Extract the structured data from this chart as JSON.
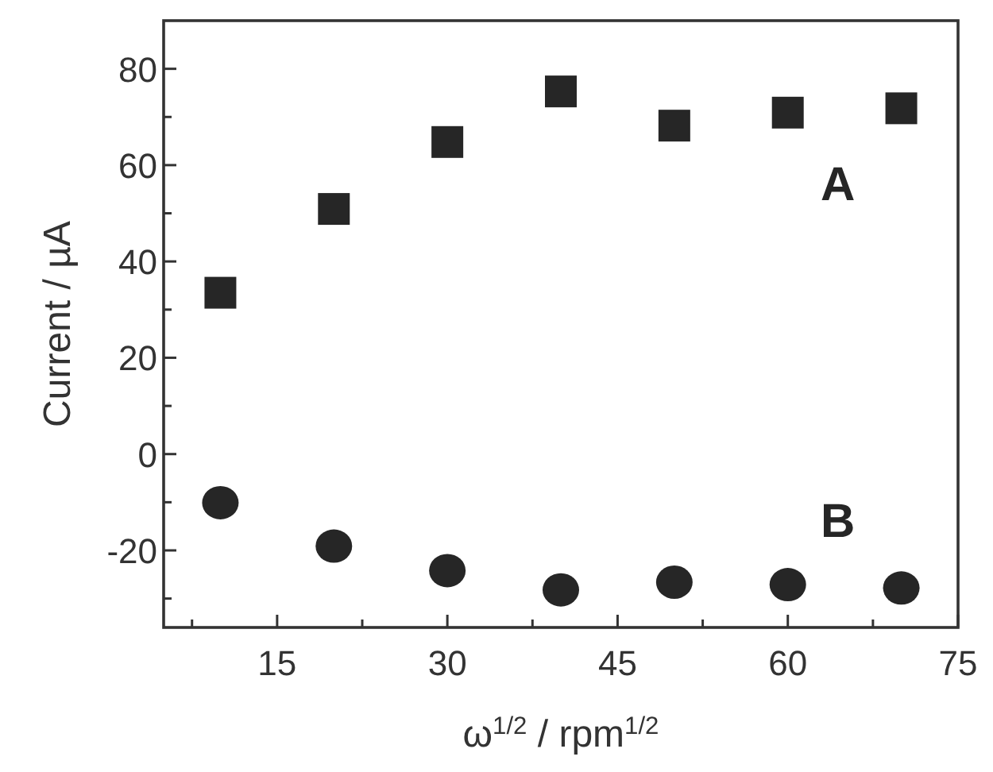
{
  "chart_data": {
    "type": "scatter",
    "xlabel": "ω$^{1/2}$ / rpm$^{1/2}$",
    "ylabel": "Current / µA",
    "x": [
      10,
      20,
      30,
      40,
      50,
      60,
      70
    ],
    "series": [
      {
        "name": "A",
        "color": "#262626",
        "marker": "square",
        "values": [
          33.5,
          50.9,
          64.8,
          75.3,
          68.2,
          70.9,
          71.8
        ]
      },
      {
        "name": "B",
        "color": "#262626",
        "marker": "circle",
        "values": [
          -10.1,
          -19.1,
          -24.2,
          -28.2,
          -26.6,
          -27.1,
          -27.8
        ]
      }
    ],
    "xlim": [
      5,
      75
    ],
    "xticks": [
      {
        "value": 7.5,
        "label": null
      },
      15,
      {
        "value": 22.5,
        "label": null
      },
      30,
      {
        "value": 37.5,
        "label": null
      },
      45,
      {
        "value": 52.5,
        "label": null
      },
      60,
      {
        "value": 67.5,
        "label": null
      },
      75
    ],
    "ylim": [
      -36,
      90
    ],
    "yticks": [
      {
        "value": -30,
        "label": null
      },
      -20,
      {
        "value": -10,
        "label": null
      },
      0,
      {
        "value": 10,
        "label": null
      },
      20,
      {
        "value": 30,
        "label": null
      },
      40,
      {
        "value": 50,
        "label": null
      },
      60,
      {
        "value": 70,
        "label": null
      },
      80
    ],
    "grid": false
  }
}
